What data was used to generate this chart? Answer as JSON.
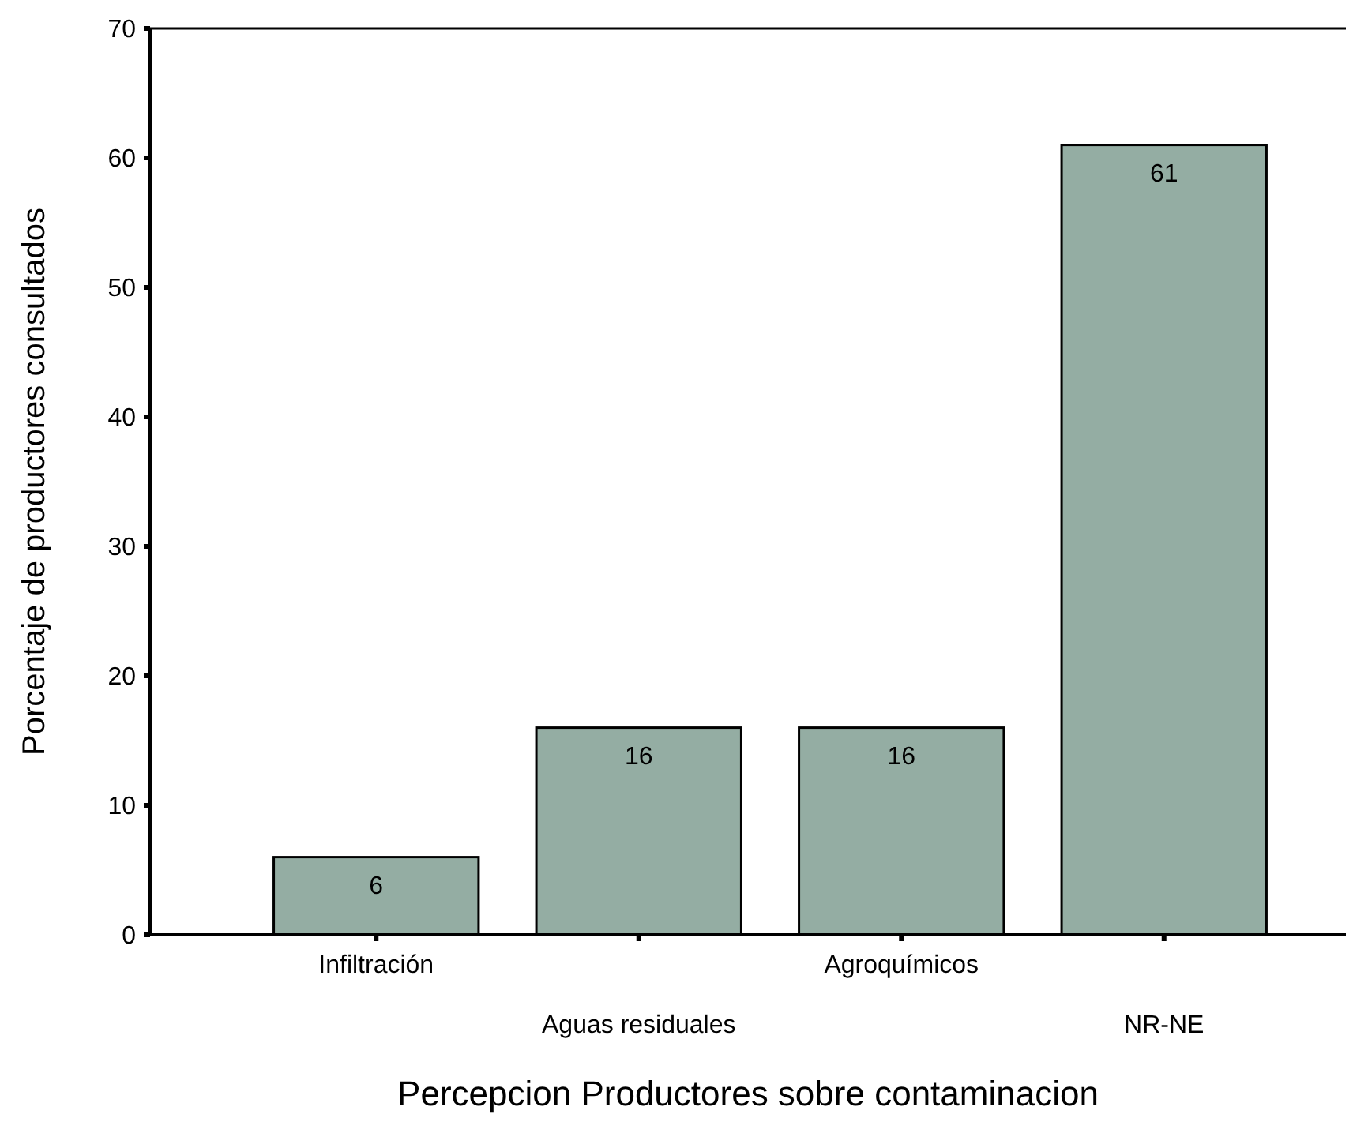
{
  "chart_data": {
    "type": "bar",
    "xlabel": "Percepcion Productores sobre contaminacion",
    "ylabel": "Porcentaje de productores consultados",
    "categories": [
      "Infiltración",
      "Aguas residuales",
      "Agroquímicos",
      "NR-NE"
    ],
    "values": [
      6,
      16,
      16,
      61
    ],
    "color": "#94ada3",
    "data_labels": true,
    "ylim": [
      0,
      70
    ],
    "yticks": [
      0,
      10,
      20,
      30,
      40,
      50,
      60,
      70
    ],
    "grid": false
  }
}
